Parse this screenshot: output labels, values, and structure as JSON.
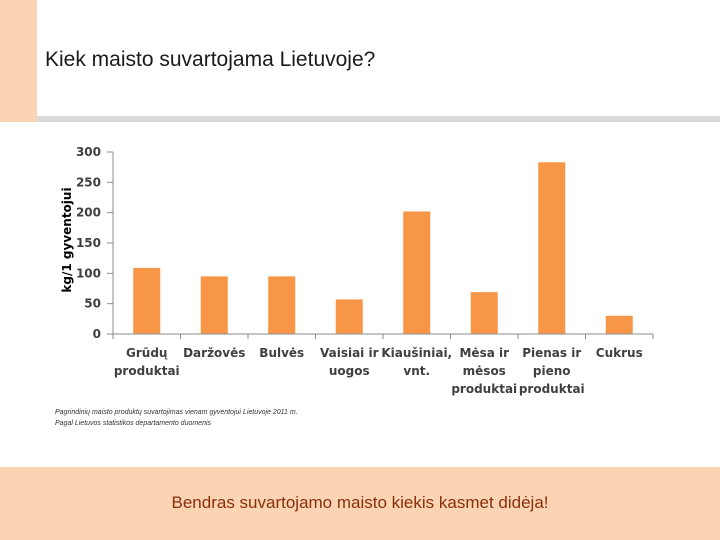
{
  "slide": {
    "title": "Kiek maisto suvartojama Lietuvoje?",
    "caption_lines": [
      "Pagrindinių maisto produktų suvartojimas vienam gyventojui Lietuvoje 2011 m.",
      "Pagal Lietuvos statistikos departamento duomenis"
    ],
    "footer": "Bendras suvartojamo maisto kiekis kasmet didėja!"
  },
  "colors": {
    "bar": "#f79646",
    "accent_panel": "#fad4b3",
    "footer_text": "#8b2e0e"
  },
  "chart_data": {
    "type": "bar",
    "title": "",
    "xlabel": "",
    "ylabel": "kg/1 gyventojui",
    "ylim": [
      0,
      300
    ],
    "yticks": [
      0,
      50,
      100,
      150,
      200,
      250,
      300
    ],
    "grid": false,
    "legend": "none",
    "categories": [
      [
        "Grūdų",
        "produktai"
      ],
      [
        "Daržovės"
      ],
      [
        "Bulvės"
      ],
      [
        "Vaisiai ir",
        "uogos"
      ],
      [
        "Kiaušiniai,",
        "vnt."
      ],
      [
        "Mėsa ir",
        "mėsos",
        "produktai"
      ],
      [
        "Pienas ir",
        "pieno",
        "produktai"
      ],
      [
        "Cukrus"
      ]
    ],
    "values": [
      109,
      95,
      95,
      57,
      202,
      69,
      283,
      30
    ]
  }
}
